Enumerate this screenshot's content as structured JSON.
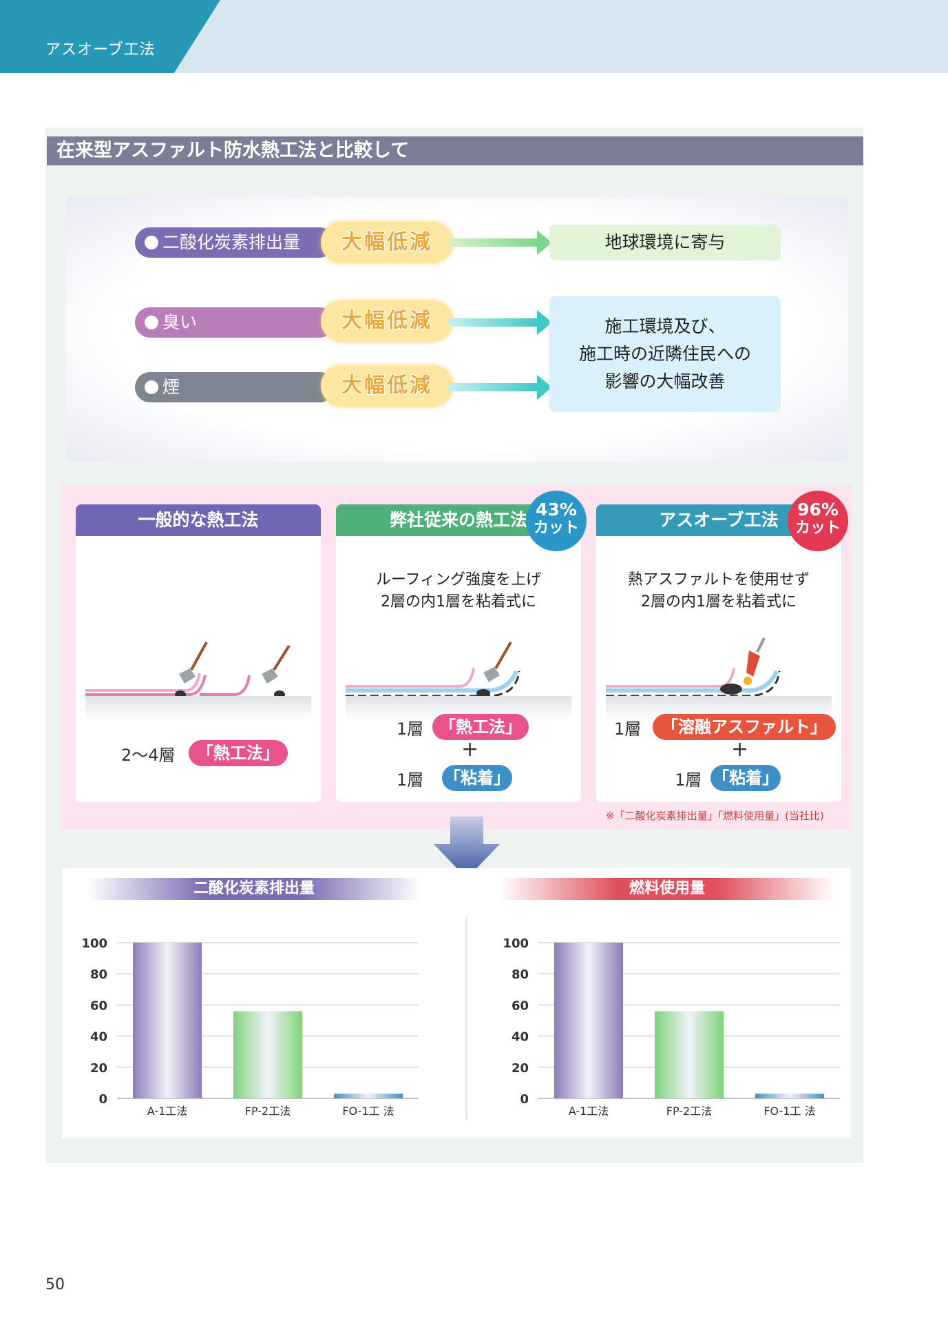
{
  "header": {
    "section_label": "アスオーブ工法"
  },
  "section_title": "在来型アスファルト防水熱工法と比較して",
  "comparison": {
    "items": [
      {
        "label": "二酸化炭素排出量",
        "badge": "大幅低減",
        "color": "#7c6cb4"
      },
      {
        "label": "臭い",
        "badge": "大幅低減",
        "color": "#b87cb8"
      },
      {
        "label": "煙",
        "badge": "大幅低減",
        "color": "#7d8590"
      }
    ],
    "results": [
      {
        "lines": [
          "地球環境に寄与"
        ],
        "bg": "#e2f4d8"
      },
      {
        "lines": [
          "施工環境及び、",
          "施工時の近隣住民への",
          "影響の大幅改善"
        ],
        "bg": "#daf0fa"
      }
    ]
  },
  "methods": [
    {
      "title": "一般的な熱工法",
      "head_color": "#7067b4",
      "sub": [],
      "layers": [
        {
          "count": "2〜4層",
          "tag": "「熱工法」",
          "tag_color": "#e9528c"
        }
      ]
    },
    {
      "title": "弊社従来の熱工法",
      "head_color": "#4fb07a",
      "sub": [
        "ルーフィング強度を上げ",
        "2層の内1層を粘着式に"
      ],
      "cut": {
        "pct": "43%",
        "label": "カット",
        "mark": "※",
        "color": "#2b97c9"
      },
      "layers": [
        {
          "count": "1層",
          "tag": "「熱工法」",
          "tag_color": "#e9528c"
        },
        {
          "count": "1層",
          "tag": "「粘着」",
          "tag_color": "#3e8fc6"
        }
      ],
      "plus": "+"
    },
    {
      "title": "アスオーブ工法",
      "head_color": "#369bb8",
      "sub": [
        "熱アスファルトを使用せず",
        "2層の内1層を粘着式に"
      ],
      "cut": {
        "pct": "96%",
        "label": "カット",
        "mark": "※",
        "color": "#e23a52"
      },
      "layers": [
        {
          "count": "1層",
          "tag": "「溶融アスファルト」",
          "tag_color": "#e8553e"
        },
        {
          "count": "1層",
          "tag": "「粘着」",
          "tag_color": "#3e8fc6"
        }
      ],
      "plus": "+"
    }
  ],
  "footnote": "※「二酸化炭素排出量」「燃料使用量」(当社比)",
  "chart_data": [
    {
      "type": "bar",
      "title": "二酸化炭素排出量",
      "categories": [
        "A-1工法",
        "FP-2工法",
        "FO-1工 法"
      ],
      "values": [
        100,
        56,
        3
      ],
      "ylim": [
        0,
        100
      ],
      "yticks": [
        0,
        20,
        40,
        60,
        80,
        100
      ],
      "grid": true,
      "bar_colors": [
        "#8d7cb8",
        "#7fd37a",
        "#4a8fbf"
      ]
    },
    {
      "type": "bar",
      "title": "燃料使用量",
      "categories": [
        "A-1工法",
        "FP-2工法",
        "FO-1工 法"
      ],
      "values": [
        100,
        56,
        3
      ],
      "ylim": [
        0,
        100
      ],
      "yticks": [
        0,
        20,
        40,
        60,
        80,
        100
      ],
      "grid": true,
      "bar_colors": [
        "#8d7cb8",
        "#7fd37a",
        "#4a8fbf"
      ]
    }
  ],
  "page_number": "50"
}
